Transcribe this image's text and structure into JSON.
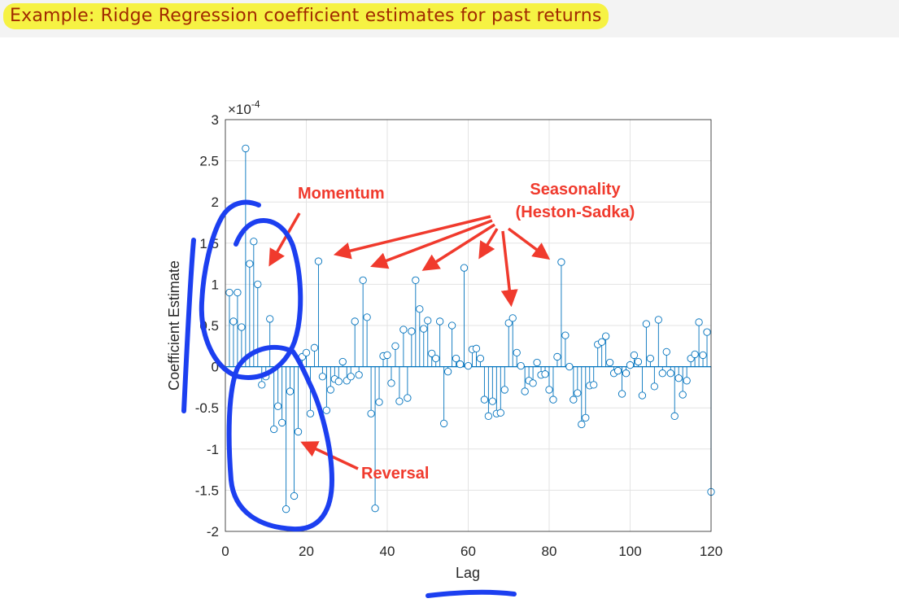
{
  "title": "Example: Ridge Regression coefficient estimates for past returns",
  "chart_data": {
    "type": "stem",
    "xlabel": "Lag",
    "ylabel": "Coefficient Estimate",
    "scale_label": "×10",
    "scale_exponent": "-4",
    "xlim": [
      0,
      120
    ],
    "ylim": [
      -2,
      3
    ],
    "xticks": [
      "0",
      "20",
      "40",
      "60",
      "80",
      "100",
      "120"
    ],
    "yticks": [
      "-2",
      "-1.5",
      "-1",
      "-0.5",
      "0",
      "0.5",
      "1",
      "1.5",
      "2",
      "2.5",
      "3"
    ],
    "xtick_values": [
      0,
      20,
      40,
      60,
      80,
      100,
      120
    ],
    "ytick_values": [
      -2,
      -1.5,
      -1,
      -0.5,
      0,
      0.5,
      1,
      1.5,
      2,
      2.5,
      3
    ],
    "grid": true,
    "color": "#0072bd",
    "x": [
      1,
      2,
      3,
      4,
      5,
      6,
      7,
      8,
      9,
      10,
      11,
      12,
      13,
      14,
      15,
      16,
      17,
      18,
      19,
      20,
      21,
      22,
      23,
      24,
      25,
      26,
      27,
      28,
      29,
      30,
      31,
      32,
      33,
      34,
      35,
      36,
      37,
      38,
      39,
      40,
      41,
      42,
      43,
      44,
      45,
      46,
      47,
      48,
      49,
      50,
      51,
      52,
      53,
      54,
      55,
      56,
      57,
      58,
      59,
      60,
      61,
      62,
      63,
      64,
      65,
      66,
      67,
      68,
      69,
      70,
      71,
      72,
      73,
      74,
      75,
      76,
      77,
      78,
      79,
      80,
      81,
      82,
      83,
      84,
      85,
      86,
      87,
      88,
      89,
      90,
      91,
      92,
      93,
      94,
      95,
      96,
      97,
      98,
      99,
      100,
      101,
      102,
      103,
      104,
      105,
      106,
      107,
      108,
      109,
      110,
      111,
      112,
      113,
      114,
      115,
      116,
      117,
      118,
      119,
      120
    ],
    "y": [
      0.9,
      0.55,
      0.9,
      0.48,
      2.65,
      1.25,
      1.52,
      1,
      -0.22,
      -0.12,
      0.58,
      -0.76,
      -0.48,
      -0.68,
      -1.73,
      -0.3,
      -1.57,
      -0.79,
      0.12,
      0.17,
      -0.57,
      0.23,
      1.28,
      -0.12,
      -0.53,
      -0.28,
      -0.15,
      -0.18,
      0.06,
      -0.17,
      -0.12,
      0.55,
      -0.1,
      1.05,
      0.6,
      -0.57,
      -1.72,
      -0.43,
      0.13,
      0.14,
      -0.2,
      0.25,
      -0.42,
      0.45,
      -0.38,
      0.43,
      1.05,
      0.7,
      0.46,
      0.56,
      0.16,
      0.1,
      0.55,
      -0.69,
      -0.06,
      0.5,
      0.1,
      0.03,
      1.2,
      0.01,
      0.21,
      0.22,
      0.1,
      -0.4,
      -0.6,
      -0.42,
      -0.57,
      -0.56,
      -0.28,
      0.53,
      0.59,
      0.17,
      0.01,
      -0.3,
      -0.17,
      -0.2,
      0.05,
      -0.1,
      -0.09,
      -0.28,
      -0.4,
      0.12,
      1.27,
      0.38,
      0,
      -0.4,
      -0.32,
      -0.7,
      -0.62,
      -0.23,
      -0.22,
      0.27,
      0.3,
      0.37,
      0.05,
      -0.08,
      -0.05,
      -0.33,
      -0.08,
      0.02,
      0.14,
      0.06,
      -0.35,
      0.52,
      0.1,
      -0.24,
      0.57,
      -0.08,
      0.18,
      -0.08,
      -0.6,
      -0.14,
      -0.34,
      -0.17,
      0.1,
      0.15,
      0.54,
      0.14,
      0.42,
      -1.52
    ]
  },
  "annotations": {
    "momentum": "Momentum",
    "seasonality_1": "Seasonality",
    "seasonality_2": "(Heston-Sadka)",
    "reversal": "Reversal"
  },
  "colors": {
    "stem": "#0072bd",
    "annotation": "#f03a2d",
    "ink": "#1c3ff0",
    "title_text": "#a12a00",
    "title_highlight": "#f6f243"
  }
}
